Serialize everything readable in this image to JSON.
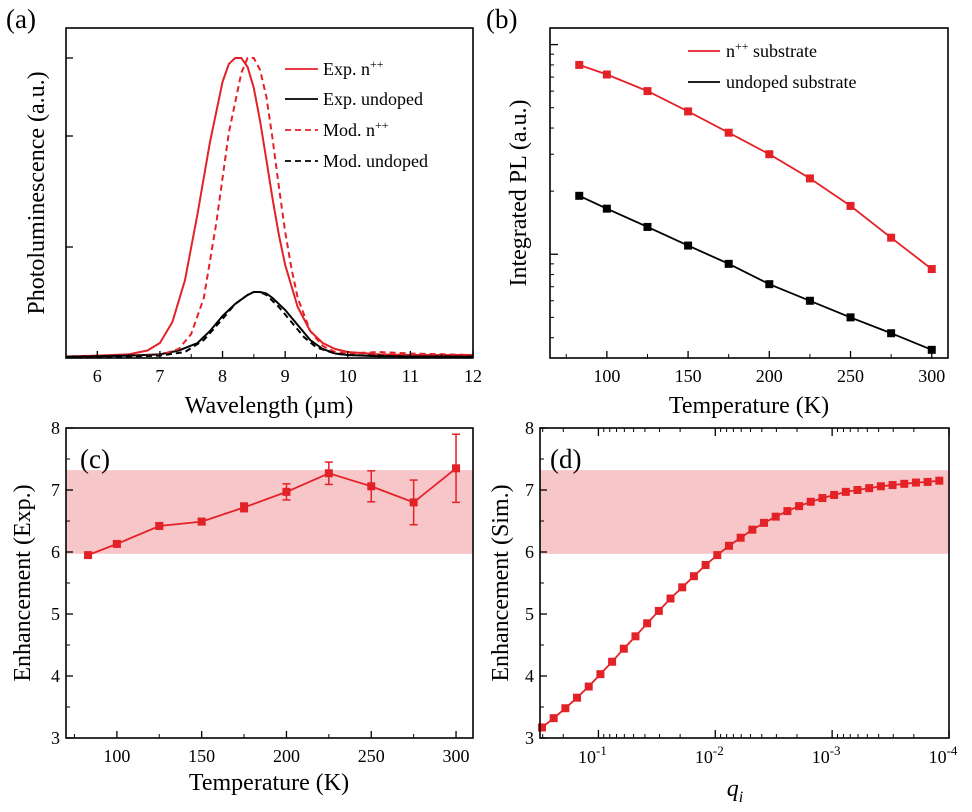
{
  "figure": {
    "colors": {
      "red": "#e32228",
      "black": "#000000",
      "band": "#f7c6c8"
    }
  },
  "chart_data": [
    {
      "id": "a",
      "panel_label": "(a)",
      "type": "line",
      "xlabel": "Wavelength (µm)",
      "ylabel": "Photoluminescence (a.u.)",
      "xlim": [
        5.5,
        12
      ],
      "ylim": [
        0,
        1.1
      ],
      "xticks": [
        "6",
        "7",
        "8",
        "9",
        "10",
        "11",
        "12"
      ],
      "legend": {
        "position": "top-right"
      },
      "series": [
        {
          "name": "Exp. n",
          "sup": "++",
          "style": "solid",
          "color": "#e32228",
          "x": [
            5.5,
            6.0,
            6.5,
            6.8,
            7.0,
            7.2,
            7.4,
            7.6,
            7.8,
            8.0,
            8.1,
            8.2,
            8.3,
            8.4,
            8.5,
            8.6,
            8.7,
            8.8,
            8.9,
            9.0,
            9.2,
            9.4,
            9.6,
            9.8,
            10.0,
            10.5,
            11.0,
            11.5,
            12.0
          ],
          "y": [
            0.005,
            0.008,
            0.012,
            0.025,
            0.05,
            0.12,
            0.26,
            0.48,
            0.72,
            0.92,
            0.98,
            1.0,
            1.0,
            0.97,
            0.9,
            0.79,
            0.66,
            0.53,
            0.41,
            0.31,
            0.17,
            0.09,
            0.05,
            0.03,
            0.02,
            0.012,
            0.01,
            0.01,
            0.01
          ]
        },
        {
          "name": "Exp. undoped",
          "style": "solid",
          "color": "#000000",
          "x": [
            5.5,
            6.0,
            6.5,
            7.0,
            7.3,
            7.6,
            7.8,
            8.0,
            8.2,
            8.4,
            8.5,
            8.6,
            8.7,
            8.8,
            9.0,
            9.2,
            9.4,
            9.6,
            9.8,
            10.0,
            10.5,
            11.0,
            12.0
          ],
          "y": [
            0.005,
            0.006,
            0.008,
            0.012,
            0.025,
            0.05,
            0.09,
            0.14,
            0.18,
            0.21,
            0.22,
            0.22,
            0.215,
            0.2,
            0.16,
            0.11,
            0.06,
            0.03,
            0.015,
            0.01,
            0.006,
            0.005,
            0.005
          ]
        },
        {
          "name": "Mod. n",
          "sup": "++",
          "style": "dashed",
          "color": "#e32228",
          "x": [
            5.5,
            6.5,
            7.0,
            7.3,
            7.5,
            7.7,
            7.9,
            8.1,
            8.3,
            8.4,
            8.5,
            8.6,
            8.7,
            8.8,
            8.9,
            9.0,
            9.1,
            9.2,
            9.4,
            9.6,
            9.8,
            10.0,
            10.5,
            11.0,
            12.0
          ],
          "y": [
            0.005,
            0.005,
            0.01,
            0.03,
            0.08,
            0.2,
            0.45,
            0.75,
            0.95,
            1.0,
            1.0,
            0.96,
            0.87,
            0.73,
            0.57,
            0.42,
            0.3,
            0.2,
            0.09,
            0.04,
            0.02,
            0.015,
            0.02,
            0.015,
            0.01
          ]
        },
        {
          "name": "Mod. undoped",
          "style": "dashed",
          "color": "#000000",
          "x": [
            5.5,
            6.5,
            7.0,
            7.4,
            7.7,
            8.0,
            8.2,
            8.4,
            8.5,
            8.6,
            8.7,
            8.9,
            9.1,
            9.3,
            9.5,
            9.8,
            10.0,
            11.0,
            12.0
          ],
          "y": [
            0.004,
            0.005,
            0.008,
            0.02,
            0.06,
            0.13,
            0.18,
            0.21,
            0.22,
            0.22,
            0.21,
            0.17,
            0.12,
            0.07,
            0.035,
            0.015,
            0.01,
            0.005,
            0.005
          ]
        }
      ]
    },
    {
      "id": "b",
      "panel_label": "(b)",
      "type": "line",
      "yscale": "log",
      "xlabel": "Temperature (K)",
      "ylabel": "Integrated PL (a.u.)",
      "xlim": [
        65,
        310
      ],
      "ylim": [
        0.32,
        12
      ],
      "xticks": [
        "100",
        "150",
        "200",
        "250",
        "300"
      ],
      "legend": {
        "position": "top-right"
      },
      "series": [
        {
          "name": "n",
          "sup": "++",
          "name_suffix": " substrate",
          "color": "#e32228",
          "x": [
            83,
            100,
            125,
            150,
            175,
            200,
            225,
            250,
            275,
            300
          ],
          "y": [
            8.0,
            7.2,
            6.0,
            4.8,
            3.8,
            3.0,
            2.3,
            1.7,
            1.2,
            0.85
          ]
        },
        {
          "name": "undoped substrate",
          "color": "#000000",
          "x": [
            83,
            100,
            125,
            150,
            175,
            200,
            225,
            250,
            275,
            300
          ],
          "y": [
            1.9,
            1.65,
            1.35,
            1.1,
            0.9,
            0.72,
            0.6,
            0.5,
            0.42,
            0.35
          ]
        }
      ]
    },
    {
      "id": "c",
      "panel_label": "(c)",
      "type": "line",
      "xlabel": "Temperature (K)",
      "ylabel": "Enhancement (Exp.)",
      "xlim": [
        70,
        310
      ],
      "ylim": [
        3,
        8
      ],
      "xticks": [
        "100",
        "150",
        "200",
        "250",
        "300"
      ],
      "yticks": [
        "3",
        "4",
        "5",
        "6",
        "7",
        "8"
      ],
      "band": [
        5.97,
        7.32
      ],
      "series": [
        {
          "name": "Enhancement (Exp.)",
          "color": "#e32228",
          "x": [
            83,
            100,
            125,
            150,
            175,
            200,
            225,
            250,
            275,
            300
          ],
          "y": [
            5.95,
            6.13,
            6.42,
            6.49,
            6.72,
            6.97,
            7.27,
            7.06,
            6.8,
            7.35
          ],
          "err": [
            0.03,
            0.04,
            0.04,
            0.05,
            0.07,
            0.13,
            0.18,
            0.25,
            0.36,
            0.55
          ]
        }
      ]
    },
    {
      "id": "d",
      "panel_label": "(d)",
      "type": "line",
      "xscale": "log-reversed",
      "xlabel_main": "q",
      "xlabel_sub": "i",
      "ylabel": "Enhancement (Sim.)",
      "xlim_exponent": [
        -0.5,
        -4
      ],
      "ylim": [
        3,
        8
      ],
      "xtick_base": "10",
      "xtick_exps": [
        "-1",
        "-2",
        "-3",
        "-4"
      ],
      "yticks": [
        "3",
        "4",
        "5",
        "6",
        "7",
        "8"
      ],
      "band": [
        5.97,
        7.32
      ],
      "series": [
        {
          "name": "Enhancement (Sim.)",
          "color": "#e32228",
          "log10_x": [
            -0.517,
            -0.617,
            -0.717,
            -0.817,
            -0.917,
            -1.017,
            -1.117,
            -1.217,
            -1.317,
            -1.417,
            -1.517,
            -1.617,
            -1.717,
            -1.817,
            -1.917,
            -2.017,
            -2.117,
            -2.217,
            -2.317,
            -2.417,
            -2.517,
            -2.617,
            -2.717,
            -2.817,
            -2.917,
            -3.017,
            -3.117,
            -3.217,
            -3.317,
            -3.417,
            -3.517,
            -3.617,
            -3.717,
            -3.817,
            -3.917
          ],
          "y": [
            3.17,
            3.32,
            3.48,
            3.65,
            3.83,
            4.03,
            4.23,
            4.44,
            4.64,
            4.85,
            5.05,
            5.25,
            5.43,
            5.61,
            5.79,
            5.95,
            6.1,
            6.23,
            6.36,
            6.47,
            6.57,
            6.66,
            6.74,
            6.81,
            6.87,
            6.92,
            6.97,
            7.0,
            7.03,
            7.06,
            7.08,
            7.1,
            7.12,
            7.13,
            7.15
          ]
        }
      ]
    }
  ]
}
